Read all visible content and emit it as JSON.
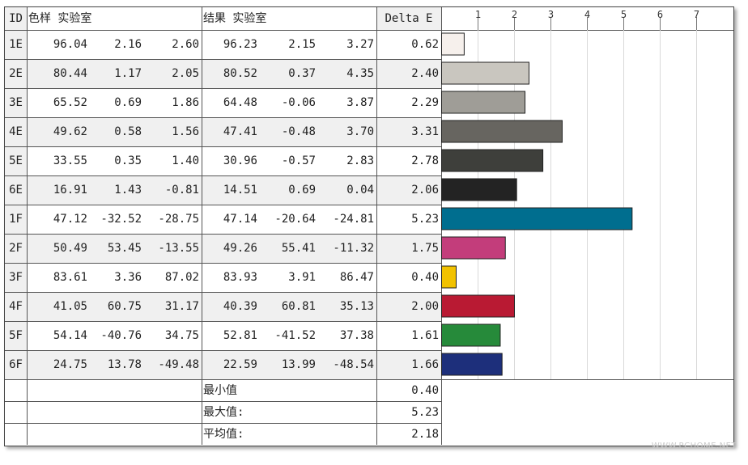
{
  "headers": {
    "id": "ID",
    "sample": "色样 实验室",
    "result": "结果 实验室",
    "delta": "Delta E"
  },
  "rows": [
    {
      "id": "1E",
      "sample": [
        "96.04",
        "2.16",
        "2.60"
      ],
      "result": [
        "96.23",
        "2.15",
        "3.27"
      ],
      "delta": "0.62"
    },
    {
      "id": "2E",
      "sample": [
        "80.44",
        "1.17",
        "2.05"
      ],
      "result": [
        "80.52",
        "0.37",
        "4.35"
      ],
      "delta": "2.40"
    },
    {
      "id": "3E",
      "sample": [
        "65.52",
        "0.69",
        "1.86"
      ],
      "result": [
        "64.48",
        "-0.06",
        "3.87"
      ],
      "delta": "2.29"
    },
    {
      "id": "4E",
      "sample": [
        "49.62",
        "0.58",
        "1.56"
      ],
      "result": [
        "47.41",
        "-0.48",
        "3.70"
      ],
      "delta": "3.31"
    },
    {
      "id": "5E",
      "sample": [
        "33.55",
        "0.35",
        "1.40"
      ],
      "result": [
        "30.96",
        "-0.57",
        "2.83"
      ],
      "delta": "2.78"
    },
    {
      "id": "6E",
      "sample": [
        "16.91",
        "1.43",
        "-0.81"
      ],
      "result": [
        "14.51",
        "0.69",
        "0.04"
      ],
      "delta": "2.06"
    },
    {
      "id": "1F",
      "sample": [
        "47.12",
        "-32.52",
        "-28.75"
      ],
      "result": [
        "47.14",
        "-20.64",
        "-24.81"
      ],
      "delta": "5.23"
    },
    {
      "id": "2F",
      "sample": [
        "50.49",
        "53.45",
        "-13.55"
      ],
      "result": [
        "49.26",
        "55.41",
        "-11.32"
      ],
      "delta": "1.75"
    },
    {
      "id": "3F",
      "sample": [
        "83.61",
        "3.36",
        "87.02"
      ],
      "result": [
        "83.93",
        "3.91",
        "86.47"
      ],
      "delta": "0.40"
    },
    {
      "id": "4F",
      "sample": [
        "41.05",
        "60.75",
        "31.17"
      ],
      "result": [
        "40.39",
        "60.81",
        "35.13"
      ],
      "delta": "2.00"
    },
    {
      "id": "5F",
      "sample": [
        "54.14",
        "-40.76",
        "34.75"
      ],
      "result": [
        "52.81",
        "-41.52",
        "37.38"
      ],
      "delta": "1.61"
    },
    {
      "id": "6F",
      "sample": [
        "24.75",
        "13.78",
        "-49.48"
      ],
      "result": [
        "22.59",
        "13.99",
        "-48.54"
      ],
      "delta": "1.66"
    }
  ],
  "summary": [
    {
      "label": "最小值",
      "value": "0.40"
    },
    {
      "label": "最大值:",
      "value": "5.23"
    },
    {
      "label": "平均值:",
      "value": "2.18"
    }
  ],
  "watermark": "WWW.PCHOME.NET",
  "chart_data": {
    "type": "bar",
    "orientation": "horizontal",
    "categories": [
      "1E",
      "2E",
      "3E",
      "4E",
      "5E",
      "6E",
      "1F",
      "2F",
      "3F",
      "4F",
      "5F",
      "6F"
    ],
    "values": [
      0.62,
      2.4,
      2.29,
      3.31,
      2.78,
      2.06,
      5.23,
      1.75,
      0.4,
      2.0,
      1.61,
      1.66
    ],
    "colors": [
      "#f6f0ec",
      "#c9c6bf",
      "#9f9d97",
      "#676560",
      "#3e3f3b",
      "#232323",
      "#006e8f",
      "#c33d7b",
      "#f2c200",
      "#b91a33",
      "#268a3a",
      "#1d2f7b"
    ],
    "xlim": [
      0,
      8
    ],
    "xticks": [
      1,
      2,
      3,
      4,
      5,
      6,
      7
    ],
    "grid": true
  }
}
